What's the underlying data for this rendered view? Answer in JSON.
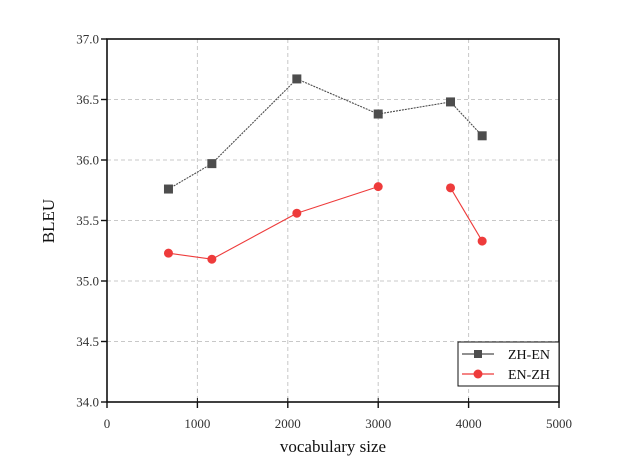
{
  "chart_data": {
    "type": "line",
    "title": "",
    "xlabel": "vocabulary size",
    "ylabel": "BLEU",
    "xlim": [
      0,
      5000
    ],
    "ylim": [
      34.0,
      37.0
    ],
    "xticks": [
      "0",
      "1000",
      "2000",
      "3000",
      "4000",
      "5000"
    ],
    "yticks": [
      "34.0",
      "34.5",
      "35.0",
      "35.5",
      "36.0",
      "36.5",
      "37.0"
    ],
    "grid": true,
    "legend_position": "lower right",
    "series": [
      {
        "name": "ZH-EN",
        "color": "#4d4d4d",
        "marker": "square",
        "x": [
          680,
          1160,
          2100,
          3000,
          3800,
          4150
        ],
        "y": [
          35.76,
          35.97,
          36.67,
          36.38,
          36.48,
          36.2
        ],
        "gaps_after_index": []
      },
      {
        "name": "EN-ZH",
        "color": "#ee3b3b",
        "marker": "circle",
        "x": [
          680,
          1160,
          2100,
          3000,
          3800,
          4150
        ],
        "y": [
          35.23,
          35.18,
          35.56,
          35.78,
          35.77,
          35.33
        ],
        "gaps_after_index": [
          3
        ]
      }
    ]
  }
}
